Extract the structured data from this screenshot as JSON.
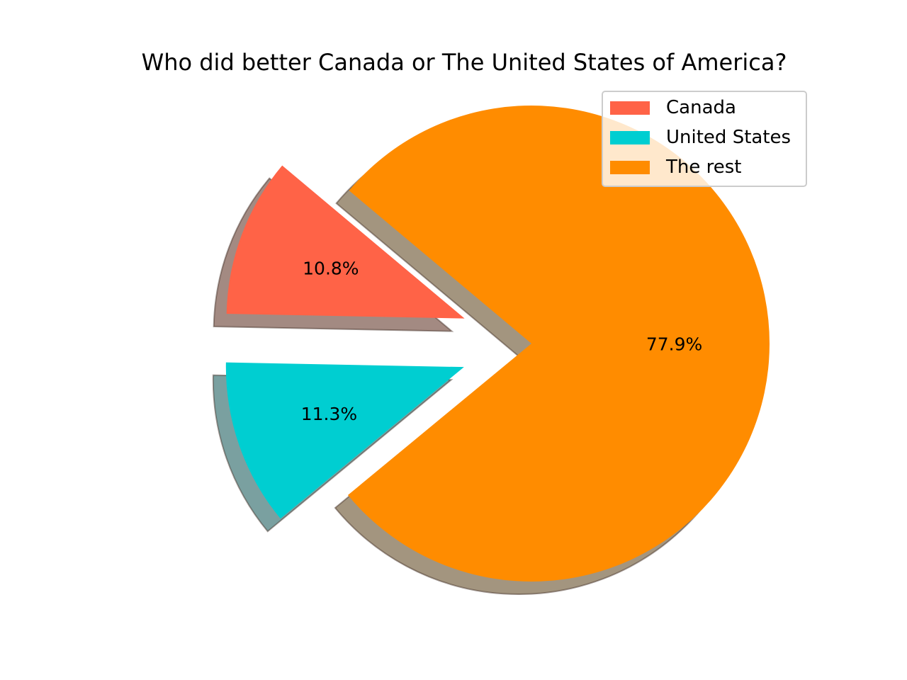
{
  "chart_data": {
    "type": "pie",
    "title": "Who did better Canada or The United States of America?",
    "slices": [
      {
        "label": "Canada",
        "value": 10.8,
        "pct_label": "10.8%",
        "color": "#ff6347",
        "shadow_color": "#a38a82",
        "exploded": true
      },
      {
        "label": "United States",
        "value": 11.3,
        "pct_label": "11.3%",
        "color": "#00ced1",
        "shadow_color": "#7aa0a0",
        "exploded": true
      },
      {
        "label": "The rest",
        "value": 77.9,
        "pct_label": "77.9%",
        "color": "#ff8c00",
        "shadow_color": "#a3957f",
        "exploded": false
      }
    ],
    "shadow": true,
    "legend": "top-right"
  }
}
